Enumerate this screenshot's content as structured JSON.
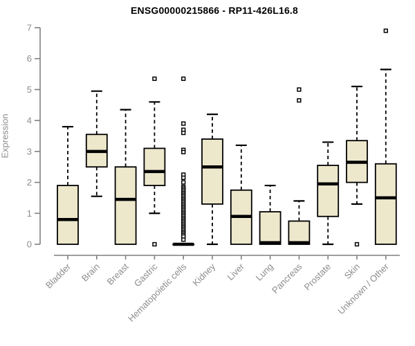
{
  "chart_data": {
    "type": "boxplot",
    "title": "ENSG00000215866 - RP11-426L16.8",
    "xlabel": "",
    "ylabel": "Expression",
    "ylim": [
      0,
      7
    ],
    "yticks": [
      0,
      1,
      2,
      3,
      4,
      5,
      6,
      7
    ],
    "grid": false,
    "legend": false,
    "categories": [
      "Bladder",
      "Brain",
      "Breast",
      "Gastric",
      "Hematopoietic cells",
      "Kidney",
      "Liver",
      "Lung",
      "Pancreas",
      "Prostate",
      "Skin",
      "Unknown / Other"
    ],
    "series": [
      {
        "name": "Bladder",
        "whisker_low": 0,
        "q1": 0,
        "median": 0.8,
        "q3": 1.9,
        "whisker_high": 3.8,
        "outliers": []
      },
      {
        "name": "Brain",
        "whisker_low": 1.55,
        "q1": 2.5,
        "median": 3.0,
        "q3": 3.55,
        "whisker_high": 4.95,
        "outliers": []
      },
      {
        "name": "Breast",
        "whisker_low": 0,
        "q1": 0,
        "median": 1.45,
        "q3": 2.5,
        "whisker_high": 4.35,
        "outliers": []
      },
      {
        "name": "Gastric",
        "whisker_low": 1.0,
        "q1": 1.9,
        "median": 2.35,
        "q3": 3.1,
        "whisker_high": 4.6,
        "outliers": [
          5.35,
          0
        ]
      },
      {
        "name": "Hematopoietic cells",
        "whisker_low": 0,
        "q1": 0,
        "median": 0,
        "q3": 0,
        "whisker_high": 0,
        "outliers": [
          5.35,
          3.9,
          3.7,
          3.6,
          3.05,
          2.98,
          2.25,
          2.15,
          2.0,
          1.85,
          1.8,
          1.75,
          1.7,
          1.65,
          1.6,
          1.55,
          1.5,
          1.45,
          1.4,
          1.35,
          1.3,
          1.25,
          1.2,
          1.15,
          1.1,
          1.05,
          1.0,
          0.95,
          0.9,
          0.85,
          0.8,
          0.75,
          0.7,
          0.65,
          0.6,
          0.55,
          0.5,
          0.45,
          0.4,
          0.35,
          0.3,
          0.25,
          0.15
        ]
      },
      {
        "name": "Kidney",
        "whisker_low": 0,
        "q1": 1.3,
        "median": 2.5,
        "q3": 3.4,
        "whisker_high": 4.2,
        "outliers": []
      },
      {
        "name": "Liver",
        "whisker_low": 0,
        "q1": 0,
        "median": 0.9,
        "q3": 1.75,
        "whisker_high": 3.2,
        "outliers": []
      },
      {
        "name": "Lung",
        "whisker_low": 0,
        "q1": 0,
        "median": 0.05,
        "q3": 1.05,
        "whisker_high": 1.9,
        "outliers": []
      },
      {
        "name": "Pancreas",
        "whisker_low": 0,
        "q1": 0,
        "median": 0.05,
        "q3": 0.75,
        "whisker_high": 1.4,
        "outliers": [
          5.0,
          4.65
        ]
      },
      {
        "name": "Prostate",
        "whisker_low": 0,
        "q1": 0.9,
        "median": 1.95,
        "q3": 2.55,
        "whisker_high": 3.3,
        "outliers": []
      },
      {
        "name": "Skin",
        "whisker_low": 1.3,
        "q1": 2.0,
        "median": 2.65,
        "q3": 3.35,
        "whisker_high": 5.1,
        "outliers": [
          0
        ]
      },
      {
        "name": "Unknown / Other",
        "whisker_low": 0,
        "q1": 0,
        "median": 1.5,
        "q3": 2.6,
        "whisker_high": 5.65,
        "outliers": [
          6.9
        ]
      }
    ],
    "colors": {
      "box_fill": "#EDE7CC",
      "box_border": "#000000",
      "median": "#000000",
      "whisker": "#000000",
      "axis": "#7f7f7f",
      "tick_label": "#8c8c8c",
      "title": "#000000",
      "background": "#ffffff"
    }
  }
}
